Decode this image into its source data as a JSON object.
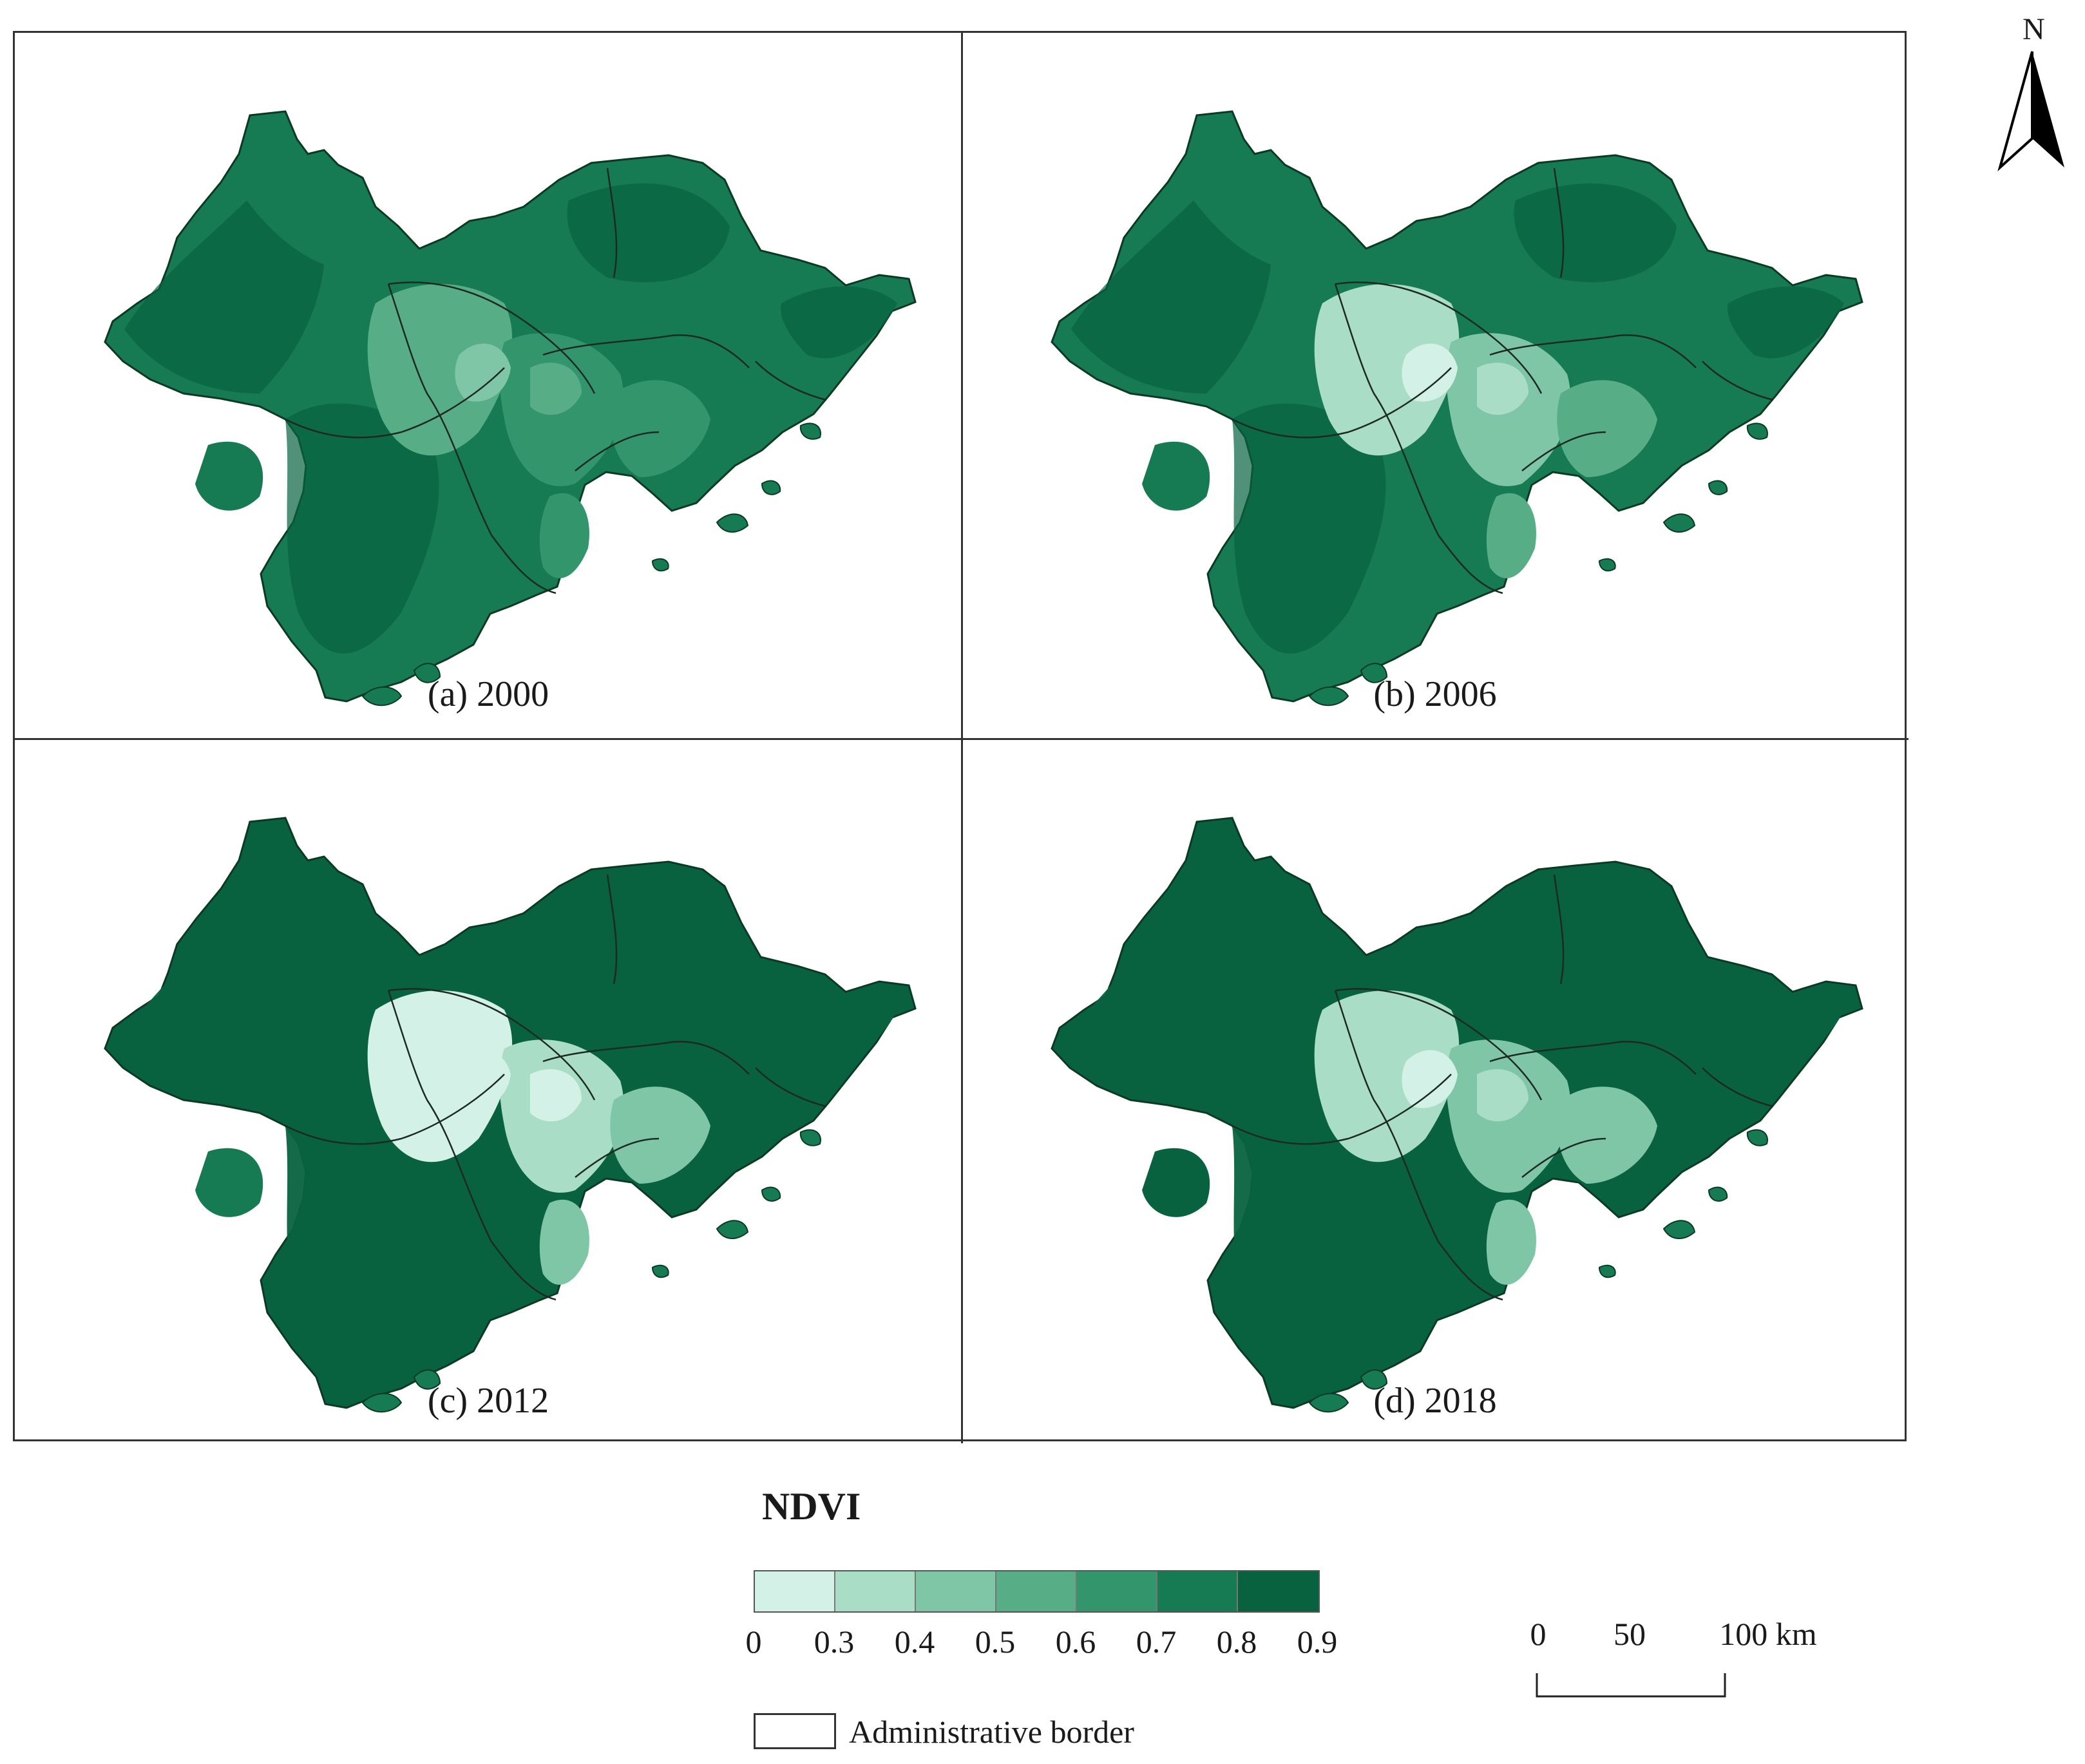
{
  "panels": [
    {
      "id": "a",
      "caption": "(a) 2000",
      "shift": 0
    },
    {
      "id": "b",
      "caption": "(b) 2006",
      "shift": 1
    },
    {
      "id": "c",
      "caption": "(c) 2012",
      "shift": 2
    },
    {
      "id": "d",
      "caption": "(d) 2018",
      "shift": 3
    }
  ],
  "north": {
    "letter": "N"
  },
  "legend": {
    "title": "NDVI",
    "classes": [
      {
        "range": "0–0.3",
        "color": "#d3f1e6"
      },
      {
        "range": "0.3–0.4",
        "color": "#a9ddc6"
      },
      {
        "range": "0.4–0.5",
        "color": "#7fc6a6"
      },
      {
        "range": "0.5–0.6",
        "color": "#57ae86"
      },
      {
        "range": "0.6–0.7",
        "color": "#33956b"
      },
      {
        "range": "0.7–0.8",
        "color": "#167a52"
      },
      {
        "range": "0.8–0.9",
        "color": "#086240"
      }
    ],
    "ticks": [
      "0",
      "0.3",
      "0.4",
      "0.5",
      "0.6",
      "0.7",
      "0.8",
      "0.9"
    ],
    "border_label": "Administrative border"
  },
  "scale": {
    "labels": [
      "0",
      "50",
      "100 km"
    ]
  }
}
